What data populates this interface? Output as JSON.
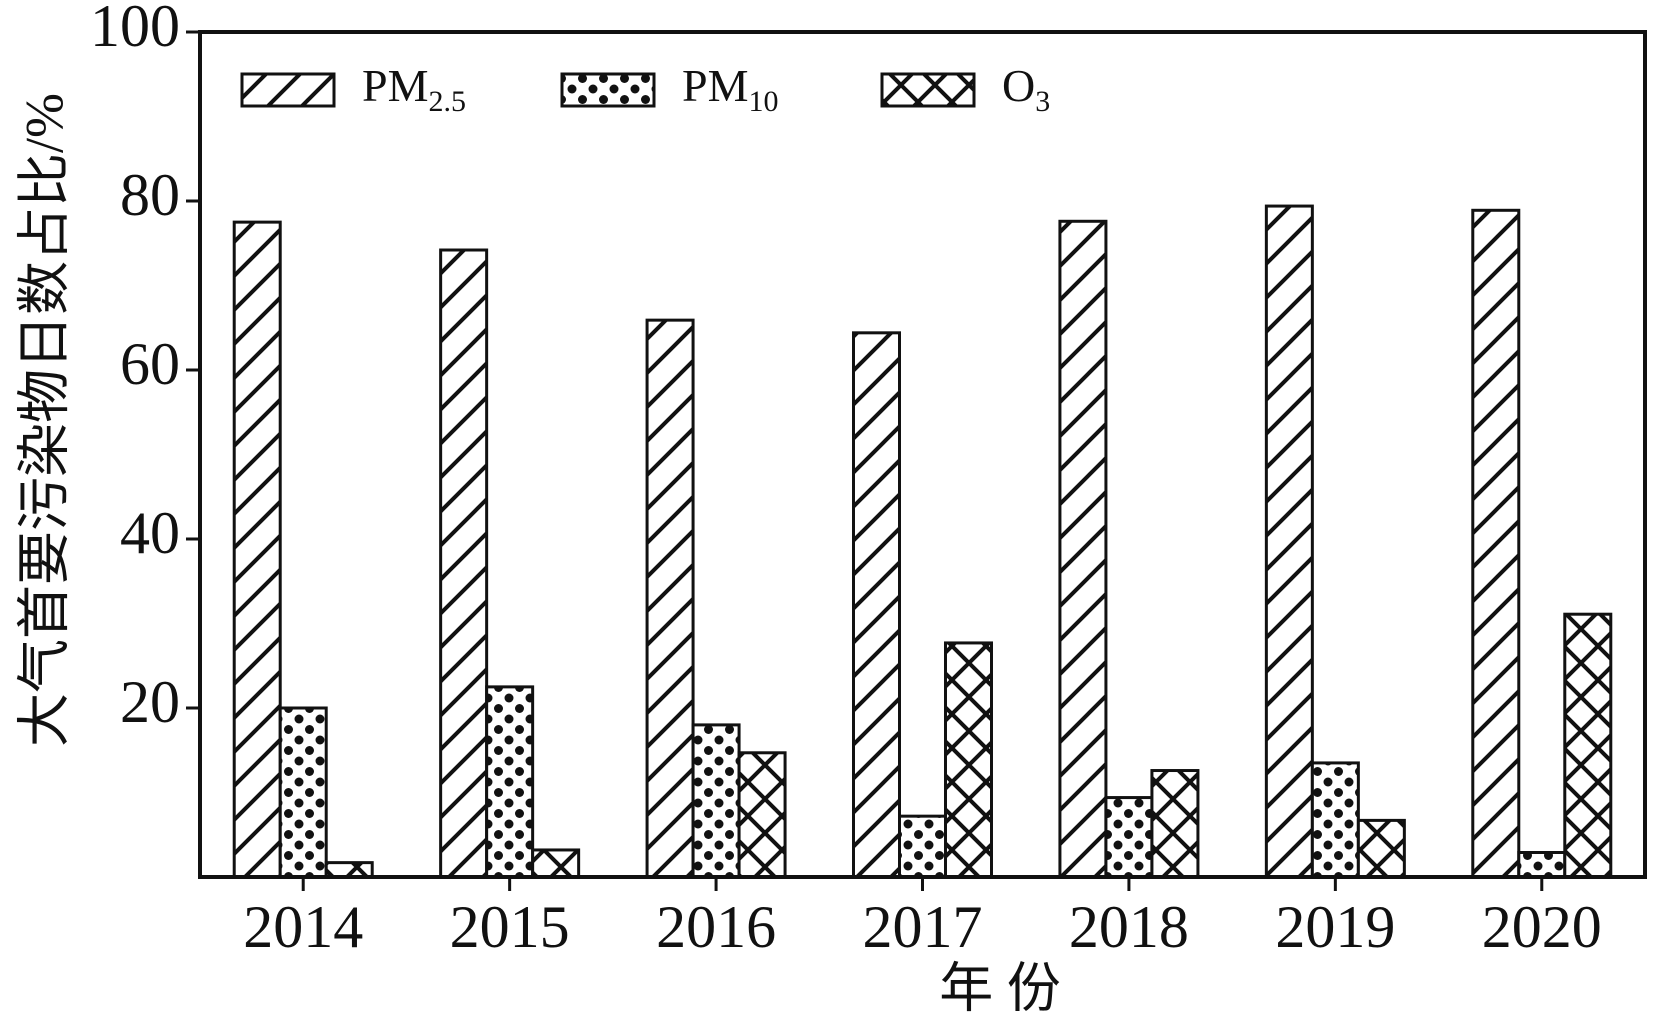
{
  "chart_data": {
    "type": "bar",
    "x_label": "年 份",
    "y_label": "大气首要污染物日数占比/%",
    "categories": [
      "2014",
      "2015",
      "2016",
      "2017",
      "2018",
      "2019",
      "2020"
    ],
    "series": [
      {
        "name": "PM2.5",
        "color": "#ffffff",
        "hatch": "diagonal",
        "values": [
          77.5,
          74.2,
          65.9,
          64.4,
          77.6,
          79.4,
          78.9
        ]
      },
      {
        "name": "PM10",
        "color": "#ffffff",
        "hatch": "dots",
        "values": [
          20,
          22.5,
          18,
          7.2,
          9.4,
          13.5,
          2.9
        ]
      },
      {
        "name": "O3",
        "color": "#ffffff",
        "hatch": "cross",
        "values": [
          1.7,
          3.2,
          14.7,
          27.7,
          12.6,
          6.7,
          31.1
        ]
      }
    ],
    "ylim": [
      0,
      100
    ],
    "yticks": [
      20,
      40,
      60,
      80,
      100
    ],
    "grid": false,
    "legend": "top-left"
  }
}
